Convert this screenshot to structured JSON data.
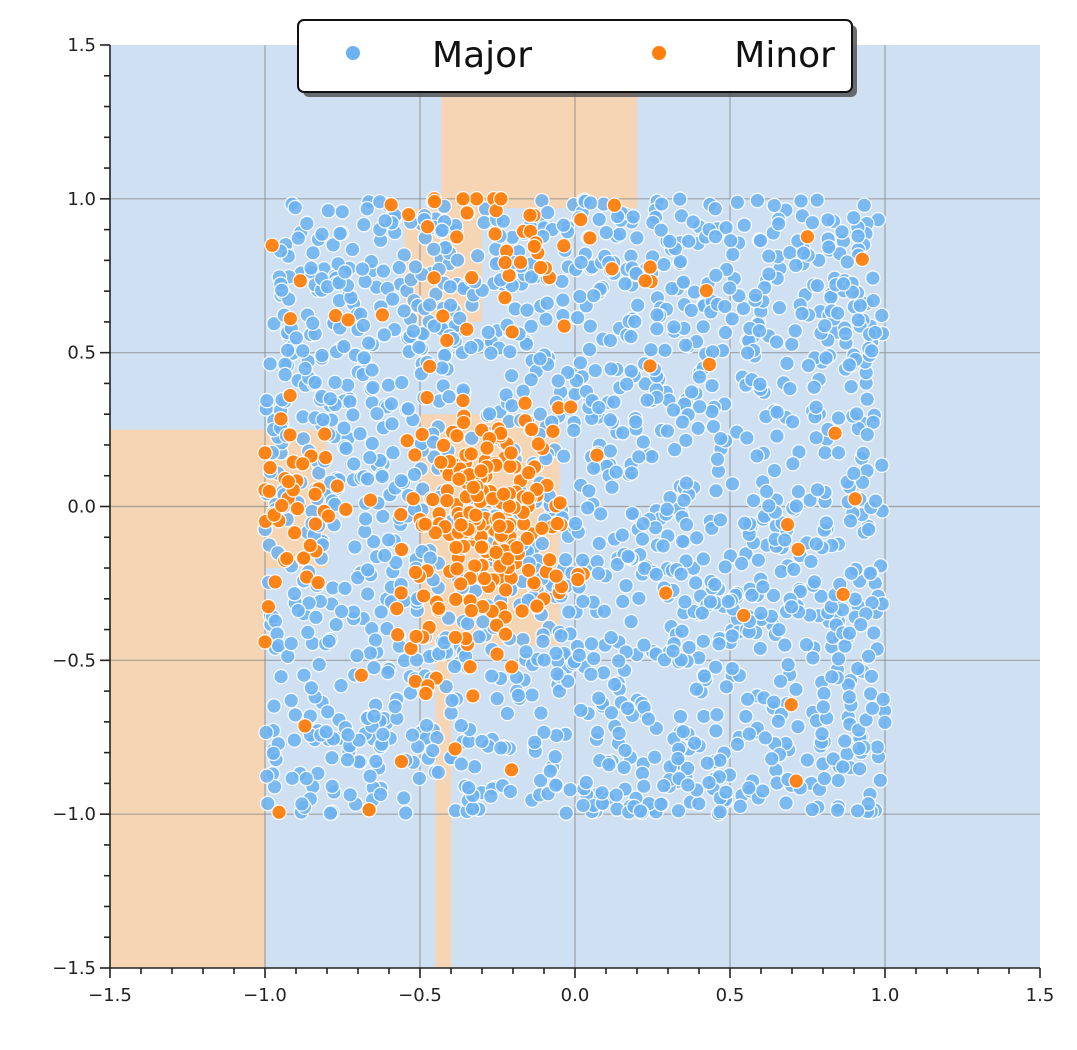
{
  "chart_data": {
    "type": "scatter",
    "title": "",
    "xlabel": "",
    "ylabel": "",
    "xlim": [
      -1.5,
      1.5
    ],
    "ylim": [
      -1.5,
      1.5
    ],
    "x_ticks": [
      -1.5,
      -1.0,
      -0.5,
      0.0,
      0.5,
      1.0,
      1.5
    ],
    "x_tick_labels": [
      "−1.5",
      "−1.0",
      "−0.5",
      "0.0",
      "0.5",
      "1.0",
      "1.5"
    ],
    "y_ticks": [
      -1.5,
      -1.0,
      -0.5,
      0.0,
      0.5,
      1.0,
      1.5
    ],
    "y_tick_labels": [
      "−1.5",
      "−1.0",
      "−0.5",
      "0.0",
      "0.5",
      "1.0",
      "1.5"
    ],
    "grid": true,
    "legend_position": "top-center",
    "background_colors": {
      "major_region": "#cfe0f3",
      "minor_region": "#f5d5b3"
    },
    "decision_regions_minor": [
      {
        "x": [
          -0.43,
          0.2
        ],
        "y": [
          0.97,
          1.4
        ]
      },
      {
        "x": [
          -1.5,
          -1.0
        ],
        "y": [
          -1.5,
          0.25
        ]
      },
      {
        "x": [
          -1.0,
          -0.8
        ],
        "y": [
          -0.2,
          0.25
        ]
      },
      {
        "x": [
          -0.45,
          -0.4
        ],
        "y": [
          -1.5,
          -0.5
        ]
      },
      {
        "x": [
          -0.5,
          -0.05
        ],
        "y": [
          -0.45,
          0.3
        ]
      },
      {
        "x": [
          -0.55,
          -0.3
        ],
        "y": [
          0.6,
          0.97
        ]
      }
    ],
    "series": [
      {
        "name": "Major",
        "color": "#6cb2f0",
        "count": 1700,
        "x_range": [
          -1.0,
          1.0
        ],
        "y_range": [
          -1.0,
          1.0
        ]
      },
      {
        "name": "Minor",
        "color": "#ff7f0e",
        "count": 340,
        "clusters": [
          {
            "center": [
              -0.27,
              -0.05
            ],
            "spread": [
              0.13,
              0.18
            ],
            "count": 210
          },
          {
            "center": [
              -0.15,
              0.83
            ],
            "spread": [
              0.22,
              0.12
            ],
            "count": 45
          },
          {
            "center": [
              -0.9,
              0.0
            ],
            "spread": [
              0.08,
              0.15
            ],
            "count": 40
          },
          {
            "center": [
              -0.45,
              -0.5
            ],
            "spread": [
              0.1,
              0.2
            ],
            "count": 15
          }
        ],
        "scattered": 30
      }
    ]
  }
}
